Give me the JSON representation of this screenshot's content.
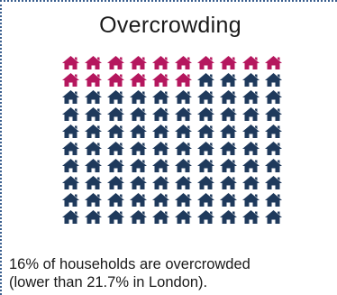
{
  "panel": {
    "title": "Overcrowding",
    "caption_line1": "16% of households are overcrowded",
    "caption_line2": "(lower than 21.7% in London)."
  },
  "colors": {
    "highlight": "#b5175e",
    "base": "#1f3a5c",
    "border": "#3a5f8f"
  },
  "icon": "house-icon",
  "chart_data": {
    "type": "waffle",
    "rows": 10,
    "cols": 10,
    "total": 100,
    "highlighted": 16,
    "value_percent": 16,
    "comparison_percent": 21.7,
    "highlight_color": "#b5175e",
    "base_color": "#1f3a5c"
  }
}
